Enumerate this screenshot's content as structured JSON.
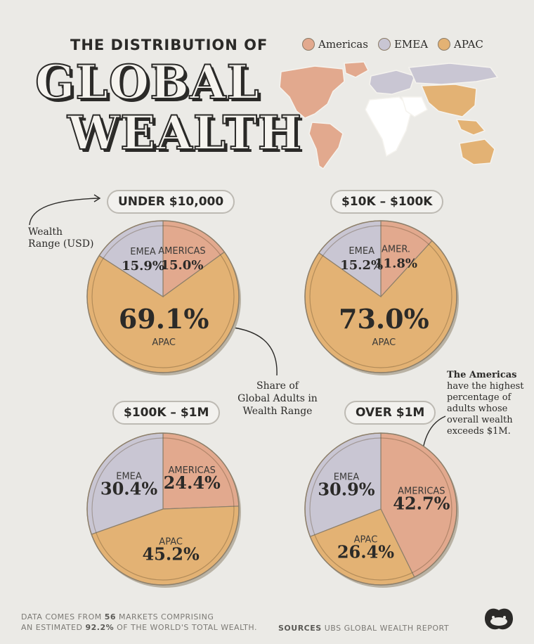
{
  "header": {
    "subtitle": "THE DISTRIBUTION OF",
    "title_line1": "GLOBAL",
    "title_line2": "WEALTH"
  },
  "legend": [
    {
      "label": "Americas",
      "color": "#e2a98e"
    },
    {
      "label": "EMEA",
      "color": "#c9c6d3"
    },
    {
      "label": "APAC",
      "color": "#e3b274"
    }
  ],
  "annotations": {
    "wealth_range_line1": "Wealth",
    "wealth_range_line2": "Range (USD)",
    "share_line1": "Share of",
    "share_line2": "Global Adults in",
    "share_line3": "Wealth Range",
    "americas_title": "The Americas",
    "americas_line1": "have the highest",
    "americas_line2": "percentage of",
    "americas_line3": "adults whose",
    "americas_line4": "overall wealth",
    "americas_line5": "exceeds $1M."
  },
  "footer": {
    "line1_a": "DATA COMES FROM ",
    "line1_b": "56",
    "line1_c": " MARKETS COMPRISING",
    "line2_a": "AN ESTIMATED ",
    "line2_b": "92.2%",
    "line2_c": " OF THE WORLD'S TOTAL WEALTH.",
    "sources_label": "SOURCES",
    "sources_value": "UBS GLOBAL WEALTH REPORT"
  },
  "chart_data": [
    {
      "type": "pie",
      "title": "UNDER $10,000",
      "slices": [
        {
          "name": "AMERICAS",
          "value": 15.0,
          "label": "15.0%",
          "color": "#e2a98e"
        },
        {
          "name": "APAC",
          "value": 69.1,
          "label": "69.1%",
          "color": "#e3b274"
        },
        {
          "name": "EMEA",
          "value": 15.9,
          "label": "15.9%",
          "color": "#c9c6d3"
        }
      ]
    },
    {
      "type": "pie",
      "title": "$10K – $100K",
      "slices": [
        {
          "name": "AMER.",
          "value": 11.8,
          "label": "11.8%",
          "color": "#e2a98e"
        },
        {
          "name": "APAC",
          "value": 73.0,
          "label": "73.0%",
          "color": "#e3b274"
        },
        {
          "name": "EMEA",
          "value": 15.2,
          "label": "15.2%",
          "color": "#c9c6d3"
        }
      ]
    },
    {
      "type": "pie",
      "title": "$100K – $1M",
      "slices": [
        {
          "name": "AMERICAS",
          "value": 24.4,
          "label": "24.4%",
          "color": "#e2a98e"
        },
        {
          "name": "APAC",
          "value": 45.2,
          "label": "45.2%",
          "color": "#e3b274"
        },
        {
          "name": "EMEA",
          "value": 30.4,
          "label": "30.4%",
          "color": "#c9c6d3"
        }
      ]
    },
    {
      "type": "pie",
      "title": "OVER $1M",
      "slices": [
        {
          "name": "AMERICAS",
          "value": 42.7,
          "label": "42.7%",
          "color": "#e2a98e"
        },
        {
          "name": "APAC",
          "value": 26.4,
          "label": "26.4%",
          "color": "#e3b274"
        },
        {
          "name": "EMEA",
          "value": 30.9,
          "label": "30.9%",
          "color": "#c9c6d3"
        }
      ]
    }
  ]
}
